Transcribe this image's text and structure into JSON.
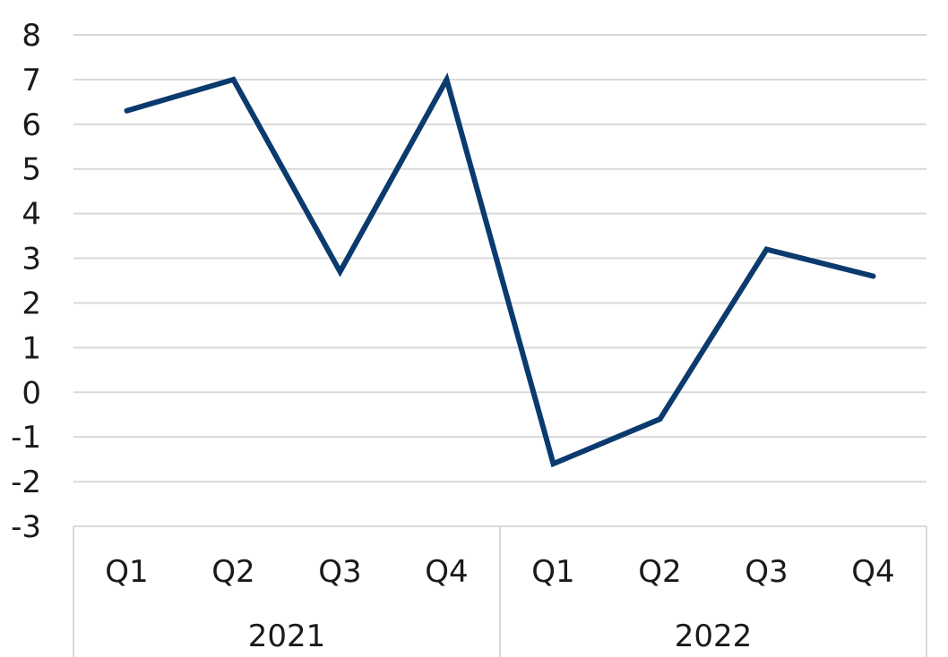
{
  "chart_data": {
    "type": "line",
    "title": "",
    "xlabel": "",
    "ylabel": "",
    "ylim": [
      -3,
      8
    ],
    "yticks": [
      "8",
      "7",
      "6",
      "5",
      "4",
      "3",
      "2",
      "1",
      "0",
      "-1",
      "-2",
      "-3"
    ],
    "grid": true,
    "legend": "none",
    "groups": [
      {
        "label": "2021",
        "categories": [
          "Q1",
          "Q2",
          "Q3",
          "Q4"
        ]
      },
      {
        "label": "2022",
        "categories": [
          "Q1",
          "Q2",
          "Q3",
          "Q4"
        ]
      }
    ],
    "categories": [
      "Q1",
      "Q2",
      "Q3",
      "Q4",
      "Q1",
      "Q2",
      "Q3",
      "Q4"
    ],
    "series": [
      {
        "values": [
          6.3,
          7.0,
          2.7,
          7.0,
          -1.6,
          -0.6,
          3.2,
          2.6
        ],
        "color": "#0a3a6e"
      }
    ]
  }
}
